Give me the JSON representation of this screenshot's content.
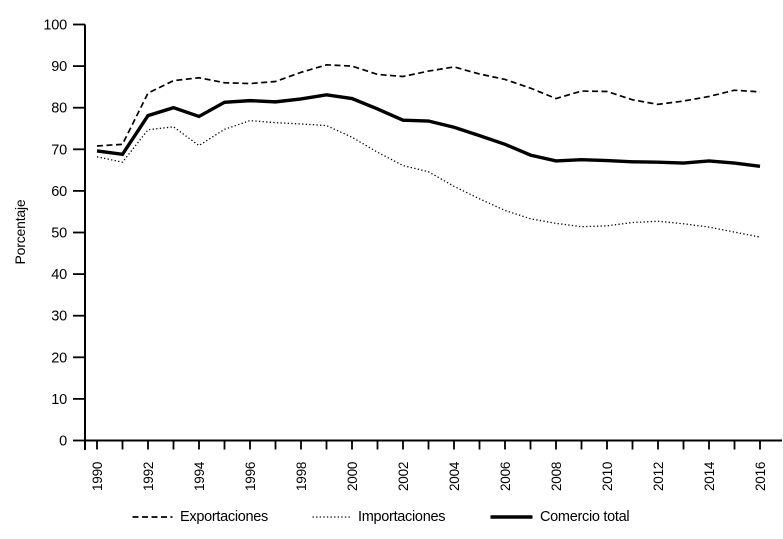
{
  "chart_data": {
    "type": "line",
    "title": "",
    "xlabel": "",
    "ylabel": "Porcentaje",
    "ylim": [
      0,
      100
    ],
    "ytick_step": 10,
    "ytick_labels": [
      "0",
      "10",
      "20",
      "30",
      "40",
      "50",
      "60",
      "70",
      "80",
      "90",
      "100"
    ],
    "x": [
      1990,
      1991,
      1992,
      1993,
      1994,
      1995,
      1996,
      1997,
      1998,
      1999,
      2000,
      2001,
      2002,
      2003,
      2004,
      2005,
      2006,
      2007,
      2008,
      2009,
      2010,
      2011,
      2012,
      2013,
      2014,
      2015,
      2016
    ],
    "xtick_label_every": 2,
    "xtick_labels_shown": [
      "1990",
      "1992",
      "1994",
      "1996",
      "1998",
      "2000",
      "2002",
      "2004",
      "2006",
      "2008",
      "2010",
      "2012",
      "2014",
      "2016"
    ],
    "grid": false,
    "legend_position": "bottom",
    "line_color": "#000000",
    "background_color": "#ffffff",
    "series": [
      {
        "name": "Exportaciones",
        "style": "dashed",
        "values": [
          70.8,
          71.2,
          83.5,
          86.5,
          87.2,
          86.0,
          85.8,
          86.3,
          88.5,
          90.3,
          90.0,
          88.0,
          87.5,
          88.8,
          89.8,
          88.1,
          86.8,
          84.7,
          82.2,
          84.0,
          83.9,
          81.9,
          80.8,
          81.6,
          82.7,
          84.2,
          83.8
        ]
      },
      {
        "name": "Importaciones",
        "style": "dotted",
        "values": [
          68.2,
          66.9,
          74.7,
          75.4,
          70.9,
          74.8,
          76.9,
          76.4,
          76.1,
          75.7,
          72.9,
          69.3,
          66.1,
          64.6,
          61.1,
          58.1,
          55.3,
          53.3,
          52.2,
          51.4,
          51.6,
          52.4,
          52.7,
          52.1,
          51.3,
          50.1,
          48.9
        ]
      },
      {
        "name": "Comercio total",
        "style": "solid",
        "values": [
          69.6,
          68.8,
          78.1,
          80.0,
          77.9,
          81.3,
          81.7,
          81.4,
          82.1,
          83.1,
          82.2,
          79.7,
          77.0,
          76.8,
          75.3,
          73.3,
          71.2,
          68.6,
          67.2,
          67.5,
          67.3,
          67.0,
          66.9,
          66.7,
          67.2,
          66.7,
          65.9
        ]
      }
    ]
  },
  "legend": {
    "items": [
      {
        "label": "Exportaciones",
        "style": "dashed"
      },
      {
        "label": "Importaciones",
        "style": "dotted"
      },
      {
        "label": "Comercio total",
        "style": "solid"
      }
    ]
  }
}
